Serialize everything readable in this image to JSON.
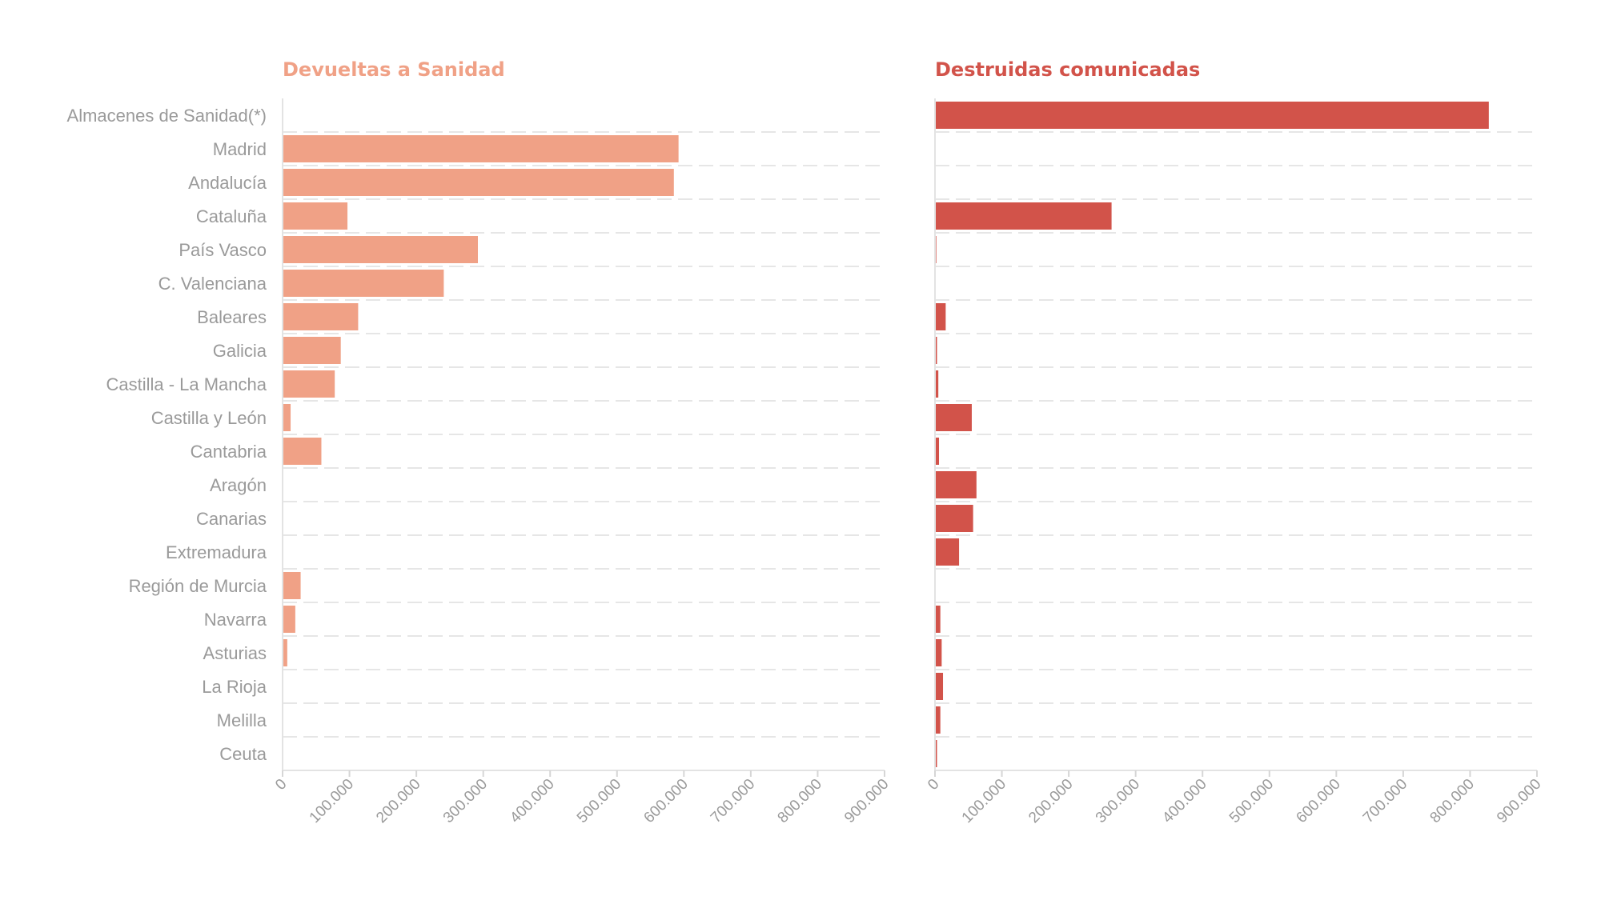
{
  "chart_data": [
    {
      "type": "bar",
      "orientation": "horizontal",
      "title": "Devueltas a Sanidad",
      "color": "#f0a186",
      "categories": [
        "Almacenes de Sanidad(*)",
        "Madrid",
        "Andalucía",
        "Cataluña",
        "País Vasco",
        "C. Valenciana",
        "Baleares",
        "Galicia",
        "Castilla - La Mancha",
        "Castilla y León",
        "Cantabria",
        "Aragón",
        "Canarias",
        "Extremadura",
        "Región de Murcia",
        "Navarra",
        "Asturias",
        "La Rioja",
        "Melilla",
        "Ceuta"
      ],
      "values": [
        0,
        592000,
        585000,
        97000,
        292000,
        241000,
        113000,
        87000,
        78000,
        12000,
        58000,
        0,
        0,
        0,
        27000,
        19000,
        7000,
        0,
        0,
        0
      ],
      "xlim": [
        0,
        900000
      ],
      "xticks": [
        "0",
        "100.000",
        "200.000",
        "300.000",
        "400.000",
        "500.000",
        "600.000",
        "700.000",
        "800.000",
        "900.000"
      ],
      "grid": true
    },
    {
      "type": "bar",
      "orientation": "horizontal",
      "title": "Destruidas comunicadas",
      "color": "#d2534a",
      "categories": [
        "Almacenes de Sanidad(*)",
        "Madrid",
        "Andalucía",
        "Cataluña",
        "País Vasco",
        "C. Valenciana",
        "Baleares",
        "Galicia",
        "Castilla - La Mancha",
        "Castilla y León",
        "Cantabria",
        "Aragón",
        "Canarias",
        "Extremadura",
        "Región de Murcia",
        "Navarra",
        "Asturias",
        "La Rioja",
        "Melilla",
        "Ceuta"
      ],
      "values": [
        828000,
        0,
        0,
        264000,
        2000,
        0,
        16000,
        3000,
        5000,
        55000,
        6000,
        62000,
        57000,
        36000,
        0,
        8000,
        10000,
        12000,
        8000,
        3000
      ],
      "xlim": [
        0,
        900000
      ],
      "xticks": [
        "0",
        "100.000",
        "200.000",
        "300.000",
        "400.000",
        "500.000",
        "600.000",
        "700.000",
        "800.000",
        "900.000"
      ],
      "grid": true
    }
  ]
}
